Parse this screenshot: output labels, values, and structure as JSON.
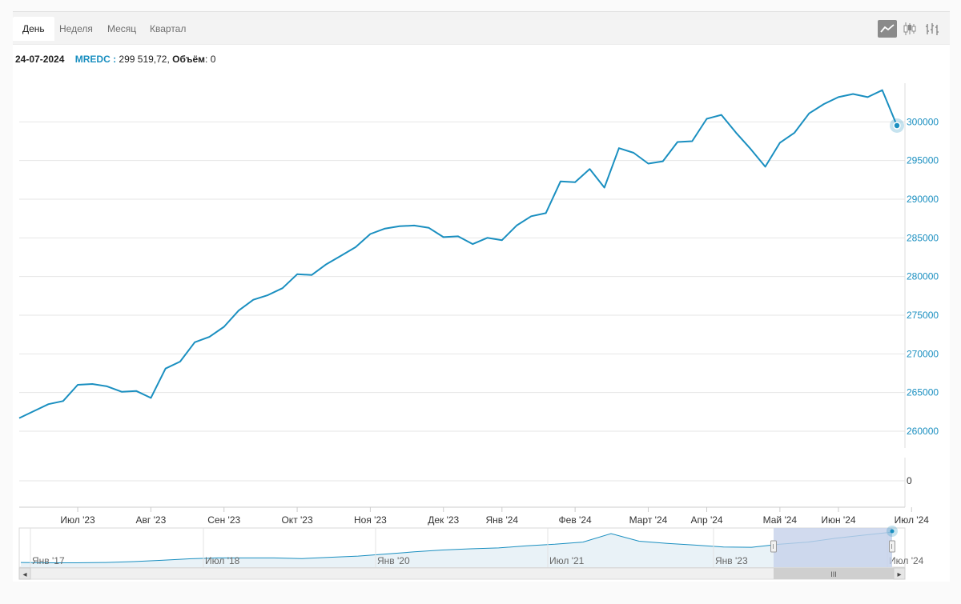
{
  "tabs": [
    {
      "label": "День",
      "active": true
    },
    {
      "label": "Неделя",
      "active": false
    },
    {
      "label": "Месяц",
      "active": false
    },
    {
      "label": "Квартал",
      "active": false
    }
  ],
  "chart_types": [
    {
      "name": "line",
      "icon": "line-chart-icon",
      "active": true
    },
    {
      "name": "candlestick",
      "icon": "candlestick-icon",
      "active": false
    },
    {
      "name": "ohlc",
      "icon": "ohlc-icon",
      "active": false
    }
  ],
  "info": {
    "date": "24-07-2024",
    "symbol": "MREDC :",
    "value": " 299 519,72,",
    "volume_label": "Объём",
    "volume_value": ": 0"
  },
  "colors": {
    "series": "#1a8fc0",
    "axis_labels": "#1a8fc0",
    "navigator_selection": "#c5d1ea"
  },
  "chart_data": {
    "type": "line",
    "series": [
      {
        "values": [
          261700,
          262600,
          263500,
          263900,
          266000,
          266100,
          265800,
          265100,
          265200,
          264300,
          268100,
          269000,
          271500,
          272200,
          273500,
          275600,
          277000,
          277600,
          278500,
          280300,
          280200,
          281600,
          282700,
          283800,
          285500,
          286200,
          286500,
          286600,
          286300,
          285100,
          285200,
          284200,
          285000,
          284700,
          286600,
          287800,
          288200,
          292300,
          292200,
          293900,
          291500,
          296600,
          296000,
          294600,
          294900,
          297400,
          297500,
          300400,
          300900,
          298600,
          296500,
          294200,
          297300,
          298600,
          301100,
          302300,
          303200,
          303600,
          303200,
          304100,
          299520
        ]
      }
    ],
    "y_axis": {
      "ticks": [
        "300000",
        "295000",
        "290000",
        "285000",
        "280000",
        "275000",
        "270000",
        "265000",
        "260000"
      ],
      "tick_values": [
        300000,
        295000,
        290000,
        285000,
        280000,
        275000,
        270000,
        265000,
        260000
      ],
      "range": [
        257000,
        305000
      ],
      "position": "right"
    },
    "volume_axis": {
      "ticks": [
        "0"
      ]
    },
    "x_axis": {
      "labels": [
        "Июл '23",
        "Авг '23",
        "Сен '23",
        "Окт '23",
        "Ноя '23",
        "Дек '23",
        "Янв '24",
        "Фев '24",
        "Март '24",
        "Апр '24",
        "Май '24",
        "Июн '24",
        "Июл '24"
      ],
      "label_index": [
        4,
        9,
        14,
        19,
        24,
        29,
        33,
        38,
        43,
        47,
        52,
        56,
        61
      ]
    },
    "navigator": {
      "labels": [
        "Янв '17",
        "Июл '18",
        "Янв '20",
        "Июл '21",
        "Янв '23",
        "Июл '24"
      ],
      "values": [
        0.05,
        0.04,
        0.04,
        0.05,
        0.08,
        0.12,
        0.17,
        0.2,
        0.2,
        0.2,
        0.18,
        0.22,
        0.26,
        0.33,
        0.4,
        0.46,
        0.5,
        0.53,
        0.6,
        0.65,
        0.72,
        1.0,
        0.75,
        0.68,
        0.62,
        0.56,
        0.55,
        0.65,
        0.72,
        0.85,
        0.95,
        1.05
      ],
      "selection_start_fraction": 0.83
    },
    "grid": true,
    "legend": "none"
  },
  "scroll": {
    "left_arrow": "◂",
    "right_arrow": "▸",
    "thumb_grip": "III"
  }
}
